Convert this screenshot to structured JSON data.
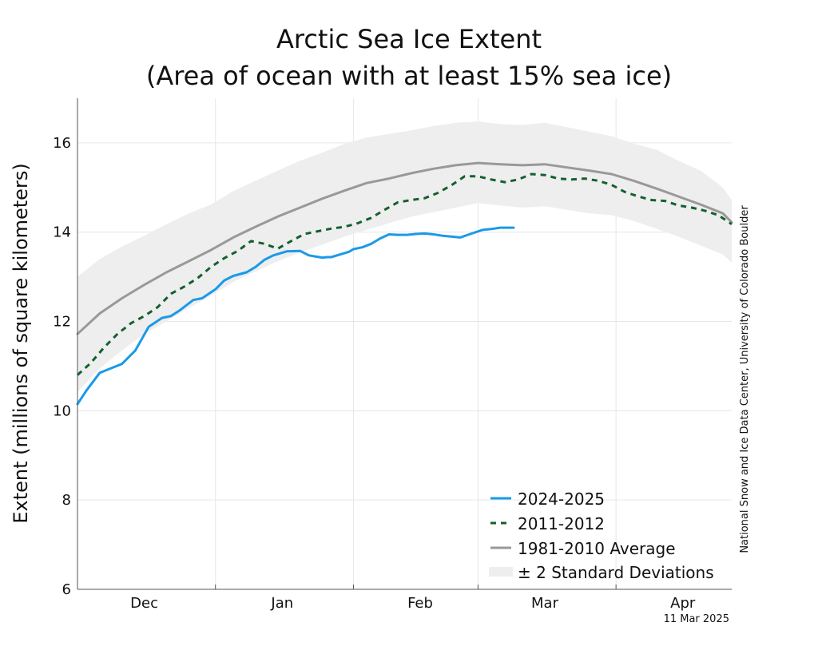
{
  "chart_data": {
    "type": "line",
    "title_line1": "Arctic Sea Ice Extent",
    "title_line2": "(Area of ocean with at least 15% sea ice)",
    "ylabel": "Extent (millions of square kilometers)",
    "ylim": [
      6,
      17
    ],
    "y_ticks": [
      "6",
      "8",
      "10",
      "12",
      "14",
      "16"
    ],
    "x_range": [
      "Nov 21",
      "Apr 16"
    ],
    "x_tick_labels": [
      "Dec",
      "Jan",
      "Feb",
      "Mar",
      "Apr"
    ],
    "x_tick_label_days": [
      15,
      46,
      77,
      105,
      136
    ],
    "x_month_boundary_days": [
      31,
      62,
      90,
      121
    ],
    "grid": true,
    "legend_position": "bottom-right",
    "legend": [
      "2024-2025",
      "2011-2012",
      "1981-2010 Average",
      "± 2 Standard Deviations"
    ],
    "credit": "National Snow and Ice Data Center, University of Colorado Boulder",
    "date_stamp": "11 Mar 2025",
    "colors": {
      "2024-2025": "#1a9ae8",
      "2011-2012": "#14602e",
      "average": "#999999",
      "std_band": "#eeeeee",
      "grid": "#e6e6e6",
      "axis": "#555555"
    },
    "series": [
      {
        "name": "2024-2025",
        "style": "solid",
        "x_day": [
          0,
          2,
          5,
          8,
          10,
          13,
          16,
          19,
          21,
          23,
          26,
          28,
          31,
          33,
          35,
          38,
          40,
          42,
          44,
          47,
          50,
          52,
          55,
          56,
          57,
          59,
          61,
          62,
          64,
          66,
          68,
          70,
          72,
          74,
          76,
          78,
          80,
          82,
          84,
          86,
          88,
          91,
          93,
          95,
          96,
          98
        ],
        "values": [
          10.15,
          10.45,
          10.85,
          10.97,
          11.05,
          11.35,
          11.88,
          12.08,
          12.12,
          12.25,
          12.48,
          12.52,
          12.72,
          12.92,
          13.02,
          13.1,
          13.22,
          13.38,
          13.48,
          13.57,
          13.58,
          13.48,
          13.43,
          13.44,
          13.44,
          13.5,
          13.56,
          13.62,
          13.66,
          13.74,
          13.86,
          13.95,
          13.94,
          13.94,
          13.96,
          13.97,
          13.95,
          13.92,
          13.9,
          13.88,
          13.95,
          14.05,
          14.07,
          14.1,
          14.1,
          14.1
        ]
      },
      {
        "name": "2011-2012",
        "style": "dashed",
        "x_day": [
          0,
          3,
          6,
          9,
          12,
          15,
          18,
          21,
          24,
          27,
          30,
          33,
          36,
          39,
          42,
          45,
          48,
          51,
          54,
          57,
          60,
          63,
          66,
          69,
          72,
          75,
          78,
          81,
          84,
          87,
          90,
          93,
          96,
          99,
          102,
          105,
          108,
          111,
          114,
          117,
          120,
          123,
          126,
          129,
          132,
          135,
          138,
          141,
          144,
          147
        ],
        "values": [
          10.8,
          11.07,
          11.42,
          11.72,
          11.96,
          12.12,
          12.32,
          12.62,
          12.78,
          12.97,
          13.22,
          13.42,
          13.58,
          13.8,
          13.74,
          13.63,
          13.8,
          13.96,
          14.02,
          14.08,
          14.12,
          14.2,
          14.32,
          14.5,
          14.67,
          14.72,
          14.76,
          14.88,
          15.05,
          15.25,
          15.25,
          15.18,
          15.12,
          15.18,
          15.3,
          15.28,
          15.2,
          15.18,
          15.2,
          15.15,
          15.06,
          14.9,
          14.8,
          14.72,
          14.7,
          14.6,
          14.55,
          14.48,
          14.38,
          14.18
        ]
      },
      {
        "name": "1981-2010 Average",
        "style": "solid",
        "x_day": [
          0,
          5,
          10,
          15,
          20,
          25,
          30,
          35,
          40,
          45,
          50,
          55,
          60,
          65,
          70,
          75,
          80,
          85,
          90,
          95,
          100,
          105,
          110,
          115,
          120,
          125,
          130,
          135,
          140,
          145,
          147
        ],
        "values": [
          11.72,
          12.18,
          12.52,
          12.82,
          13.1,
          13.35,
          13.6,
          13.88,
          14.12,
          14.35,
          14.55,
          14.75,
          14.93,
          15.1,
          15.2,
          15.32,
          15.42,
          15.5,
          15.55,
          15.52,
          15.5,
          15.52,
          15.45,
          15.38,
          15.3,
          15.15,
          14.98,
          14.8,
          14.62,
          14.42,
          14.22
        ]
      }
    ],
    "std_band": {
      "name": "± 2 Standard Deviations",
      "x_day": [
        0,
        5,
        10,
        15,
        20,
        25,
        30,
        35,
        40,
        45,
        50,
        55,
        60,
        65,
        70,
        75,
        80,
        85,
        90,
        95,
        100,
        105,
        110,
        115,
        120,
        125,
        130,
        135,
        140,
        145,
        147
      ],
      "upper": [
        13.0,
        13.4,
        13.68,
        13.92,
        14.18,
        14.42,
        14.62,
        14.92,
        15.15,
        15.38,
        15.6,
        15.78,
        15.98,
        16.12,
        16.2,
        16.28,
        16.38,
        16.45,
        16.48,
        16.42,
        16.4,
        16.45,
        16.35,
        16.25,
        16.15,
        15.98,
        15.85,
        15.6,
        15.38,
        15.0,
        14.72
      ],
      "lower": [
        10.42,
        10.95,
        11.35,
        11.72,
        12.0,
        12.3,
        12.58,
        12.88,
        13.12,
        13.35,
        13.55,
        13.72,
        13.9,
        14.05,
        14.2,
        14.35,
        14.45,
        14.55,
        14.65,
        14.6,
        14.55,
        14.58,
        14.5,
        14.42,
        14.38,
        14.25,
        14.08,
        13.9,
        13.7,
        13.5,
        13.32
      ]
    }
  }
}
